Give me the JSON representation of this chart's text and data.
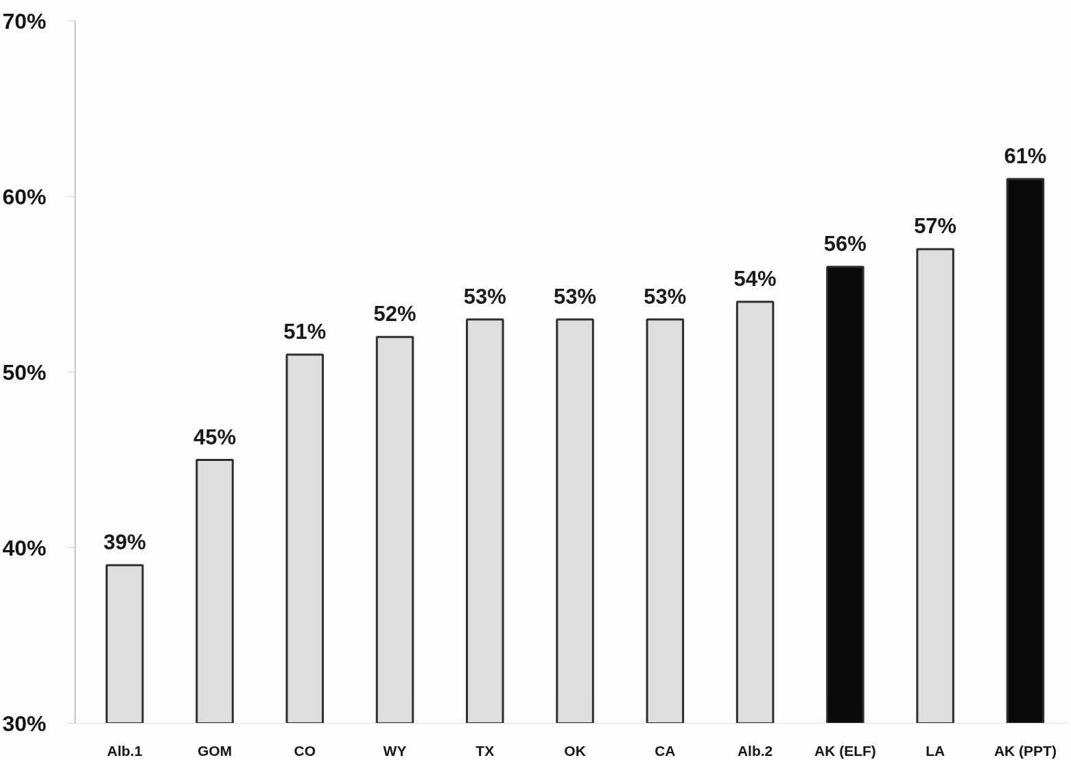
{
  "chart_data": {
    "type": "bar",
    "categories": [
      "Alb.1",
      "GOM",
      "CO",
      "WY",
      "TX",
      "OK",
      "CA",
      "Alb.2",
      "AK (ELF)",
      "LA",
      "AK (PPT)"
    ],
    "values": [
      39,
      45,
      51,
      52,
      53,
      53,
      53,
      54,
      56,
      57,
      61
    ],
    "value_labels": [
      "39%",
      "45%",
      "51%",
      "52%",
      "53%",
      "53%",
      "53%",
      "54%",
      "56%",
      "57%",
      "61%"
    ],
    "colors": [
      "#dedede",
      "#dedede",
      "#dedede",
      "#dedede",
      "#dedede",
      "#dedede",
      "#dedede",
      "#dedede",
      "#0a0a0a",
      "#dedede",
      "#0a0a0a"
    ],
    "ylim": [
      30,
      70
    ],
    "yticks": [
      {
        "value": 30,
        "label": "30%"
      },
      {
        "value": 40,
        "label": "40%"
      },
      {
        "value": 50,
        "label": "50%"
      },
      {
        "value": 60,
        "label": "60%"
      },
      {
        "value": 70,
        "label": "70%"
      }
    ],
    "grid": false
  }
}
